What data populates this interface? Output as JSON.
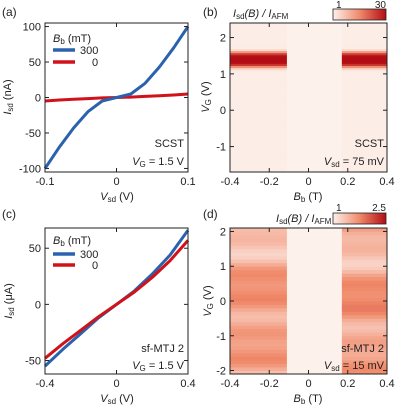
{
  "panel_labels": [
    "(a)",
    "(b)",
    "(c)",
    "(d)"
  ],
  "legend_title": "B",
  "legend_title_sub": "b",
  "legend_title_unit": " (mT)",
  "colors": {
    "blue": "#2b62ad",
    "red": "#d0121b",
    "heat_low": "#fdf1ec",
    "heat_high": "#b30d14"
  },
  "chart_data": [
    {
      "panel": "(a)",
      "type": "line",
      "xlabel_main": "V",
      "xlabel_sub": "sd",
      "xlabel_unit": " (V)",
      "ylabel_main": "I",
      "ylabel_sub": "sd",
      "ylabel_unit": " (nA)",
      "xlim": [
        -0.1,
        0.1
      ],
      "ylim": [
        -105,
        105
      ],
      "xticks": [
        "-0.1",
        "0",
        "0.1"
      ],
      "xtick_values": [
        -0.1,
        0,
        0.1
      ],
      "yticks": [
        "-100",
        "-50",
        "0",
        "50",
        "100"
      ],
      "ytick_values": [
        -100,
        -50,
        0,
        50,
        100
      ],
      "x": [
        -0.1,
        -0.08,
        -0.06,
        -0.04,
        -0.02,
        0,
        0.02,
        0.04,
        0.06,
        0.08,
        0.1
      ],
      "series": [
        {
          "name": "300",
          "color": "blue",
          "values": [
            -100,
            -70,
            -43,
            -20,
            -5,
            0,
            5,
            20,
            43,
            70,
            100
          ]
        },
        {
          "name": "0",
          "color": "red",
          "values": [
            -5,
            -3.5,
            -2.5,
            -1.5,
            -0.6,
            0,
            0.6,
            1.5,
            2.5,
            3.5,
            5
          ]
        }
      ],
      "annotations": [
        "SCST",
        "V_G = 1.5 V"
      ],
      "annot_sample": "SCST",
      "annot_bias_main": "V",
      "annot_bias_sub": "G",
      "annot_bias_rest": " = 1.5 V"
    },
    {
      "panel": "(b)",
      "type": "heatmap",
      "xlabel_main": "B",
      "xlabel_sub": "b",
      "xlabel_unit": " (T)",
      "ylabel_main": "V",
      "ylabel_sub": "G",
      "ylabel_unit": " (V)",
      "xlim": [
        -0.4,
        0.4
      ],
      "ylim": [
        -1.7,
        2.4
      ],
      "xticks": [
        "-0.4",
        "-0.2",
        "0",
        "0.2",
        "0.4"
      ],
      "xtick_values": [
        -0.4,
        -0.2,
        0,
        0.2,
        0.4
      ],
      "yticks": [
        "-1",
        "0",
        "1",
        "2"
      ],
      "ytick_values": [
        -1,
        0,
        1,
        2
      ],
      "colorbar_label": "I_sd(B) / I_AFM",
      "colorbar_min": "1",
      "colorbar_max": "30",
      "superconducting_gap": [
        -0.11,
        0.17
      ],
      "peak_vg": 1.4,
      "annot_sample": "SCST",
      "annot_bias_main": "V",
      "annot_bias_sub": "sd",
      "annot_bias_rest": " = 75 mV"
    },
    {
      "panel": "(c)",
      "type": "line",
      "xlabel_main": "V",
      "xlabel_sub": "sd",
      "xlabel_unit": " (V)",
      "ylabel_main": "I",
      "ylabel_sub": "sd",
      "ylabel_unit": " (μA)",
      "xlim": [
        -0.4,
        0.4
      ],
      "ylim": [
        -62,
        68
      ],
      "xticks": [
        "-0.4",
        "0",
        "0.4"
      ],
      "xtick_values": [
        -0.4,
        0,
        0.4
      ],
      "yticks": [
        "-50",
        "0",
        "50"
      ],
      "ytick_values": [
        -50,
        0,
        50
      ],
      "x": [
        -0.4,
        -0.3,
        -0.2,
        -0.1,
        0,
        0.1,
        0.2,
        0.3,
        0.4
      ],
      "series": [
        {
          "name": "300",
          "color": "blue",
          "values": [
            -55,
            -40,
            -26,
            -12,
            0,
            12,
            27,
            44,
            66
          ]
        },
        {
          "name": "0",
          "color": "red",
          "values": [
            -48,
            -35,
            -23,
            -11,
            0,
            11,
            24,
            39,
            57
          ]
        }
      ],
      "annot_sample": "sf-MTJ 2",
      "annot_bias_main": "V",
      "annot_bias_sub": "G",
      "annot_bias_rest": " = 1.5 V"
    },
    {
      "panel": "(d)",
      "type": "heatmap",
      "xlabel_main": "B",
      "xlabel_sub": "b",
      "xlabel_unit": " (T)",
      "ylabel_main": "V",
      "ylabel_sub": "G",
      "ylabel_unit": " (V)",
      "xlim": [
        -0.4,
        0.4
      ],
      "ylim": [
        -2.1,
        2.1
      ],
      "xticks": [
        "-0.4",
        "-0.2",
        "0",
        "0.2",
        "0.4"
      ],
      "xtick_values": [
        -0.4,
        -0.2,
        0,
        0.2,
        0.4
      ],
      "yticks": [
        "-2",
        "-1",
        "0",
        "1",
        "2"
      ],
      "ytick_values": [
        -2,
        -1,
        0,
        1,
        2
      ],
      "colorbar_label": "I_sd(B) / I_AFM",
      "colorbar_min": "1",
      "colorbar_max": "2.5",
      "superconducting_gap": [
        -0.11,
        0.17
      ],
      "annot_sample": "sf-MTJ 2",
      "annot_bias_main": "V",
      "annot_bias_sub": "sd",
      "annot_bias_rest": " = 15 mV"
    }
  ]
}
